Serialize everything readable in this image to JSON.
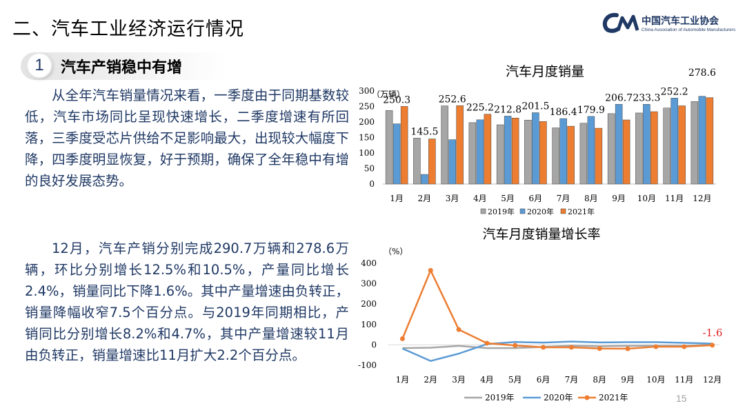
{
  "header": {
    "title": "二、汽车工业经济运行情况",
    "logo_cn": "中国汽车工业协会",
    "logo_en": "China Association of Automobile Manufacturers",
    "logo_mark": "CM"
  },
  "section": {
    "number": "1",
    "title": "汽车产销稳中有增"
  },
  "paragraphs": [
    "从全年汽车销量情况来看，一季度由于同期基数较低，汽车市场同比呈现快速增长，二季度增速有所回落，三季度受芯片供给不足影响最大，出现较大幅度下降，四季度明显恢复，好于预期，确保了全年稳中有增的良好发展态势。",
    "12月，汽车产销分别完成290.7万辆和278.6万辆，环比分别增长12.5%和10.5%，产量同比增长2.4%，销量同比下降1.6%。其中产量增速由负转正，销量降幅收窄7.5个百分点。与2019年同期相比，产销同比分别增长8.2%和4.7%，其中产量增速较11月由负转正，销量增速比11月扩大2.2个百分点。"
  ],
  "page_number": "15",
  "colors": {
    "s2019": "#a6a6a6",
    "s2020": "#5b9bd5",
    "s2021": "#ed7d31",
    "text": "#1f3864",
    "highlight": "#e02020"
  },
  "chart_data": [
    {
      "type": "bar",
      "title": "汽车月度销量",
      "ylabel": "（万辆）",
      "ylim": [
        0,
        300
      ],
      "yticks": [
        0,
        50,
        100,
        150,
        200,
        250,
        300
      ],
      "categories": [
        "1月",
        "2月",
        "3月",
        "4月",
        "5月",
        "6月",
        "7月",
        "8月",
        "9月",
        "10月",
        "11月",
        "12月"
      ],
      "series": [
        {
          "name": "2019年",
          "values": [
            237,
            148,
            252,
            198,
            191,
            206,
            181,
            196,
            227,
            229,
            245,
            266
          ]
        },
        {
          "name": "2020年",
          "values": [
            194,
            31,
            143,
            207,
            219,
            230,
            211,
            218,
            257,
            257,
            277,
            283
          ]
        },
        {
          "name": "2021年",
          "values": [
            250.3,
            145.5,
            252.6,
            225.2,
            212.8,
            201.5,
            186.4,
            179.9,
            206.7,
            233.3,
            252.2,
            278.6
          ]
        }
      ],
      "data_labels": [
        "250.3",
        "145.5",
        "252.6",
        "225.2",
        "212.8",
        "201.5",
        "186.4",
        "179.9",
        "206.7",
        "233.3",
        "252.2",
        "278.6"
      ],
      "legend_position": "bottom",
      "grid": false
    },
    {
      "type": "line",
      "title": "汽车月度销量增长率",
      "ylabel": "（%）",
      "ylim": [
        -100,
        400
      ],
      "yticks": [
        -100,
        0,
        100,
        200,
        300,
        400
      ],
      "categories": [
        "1月",
        "2月",
        "3月",
        "4月",
        "5月",
        "6月",
        "7月",
        "8月",
        "9月",
        "10月",
        "11月",
        "12月"
      ],
      "series": [
        {
          "name": "2019年",
          "values": [
            -16,
            -14,
            -5,
            -16,
            -16,
            -10,
            -4,
            -7,
            -5,
            -4,
            -4,
            0
          ]
        },
        {
          "name": "2020年",
          "values": [
            -18,
            -79,
            -43,
            4,
            14,
            11,
            16,
            12,
            13,
            13,
            10,
            6
          ]
        },
        {
          "name": "2021年",
          "values": [
            30,
            365,
            75,
            8,
            -3,
            -12,
            -12,
            -18,
            -19,
            -9,
            -9,
            -1.6
          ]
        }
      ],
      "annotation": "-1.6",
      "legend_position": "bottom",
      "grid": false
    }
  ]
}
